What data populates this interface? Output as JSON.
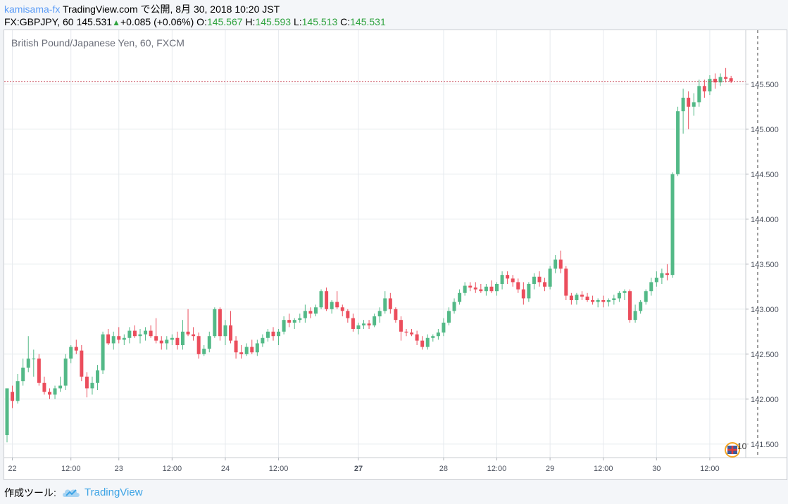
{
  "header": {
    "author": "kamisama-fx",
    "published": "TradingView.com で公開, 8月 30, 2018 10:20 JST",
    "symbol": "FX:GBPJPY, 60",
    "last": "145.531",
    "change": "+0.085 (+0.06%)",
    "o_label": "O:",
    "o_value": "145.567",
    "h_label": "H:",
    "h_value": "145.593",
    "l_label": "L:",
    "l_value": "145.513",
    "c_label": "C:",
    "c_value": "145.531"
  },
  "footer": {
    "made_with": "作成ツール:",
    "brand": "TradingView"
  },
  "colors": {
    "up": "#53b987",
    "down": "#eb4d5c",
    "grid": "#e6eaee",
    "axis_text": "#4c525e",
    "last_price_line": "#c2374a"
  },
  "chart_data": {
    "type": "candlestick",
    "title": "British Pound/Japanese Yen, 60, FXCM",
    "last_price": 145.531,
    "ylim": [
      141.35,
      146.1
    ],
    "y_ticks": [
      "141.500",
      "142.000",
      "142.500",
      "143.000",
      "143.500",
      "144.000",
      "144.500",
      "145.000",
      "145.500"
    ],
    "x_ticks": [
      {
        "label": "22",
        "bar": 1,
        "bold": false
      },
      {
        "label": "12:00",
        "bar": 12,
        "bold": false
      },
      {
        "label": "23",
        "bar": 21,
        "bold": false
      },
      {
        "label": "12:00",
        "bar": 31,
        "bold": false
      },
      {
        "label": "24",
        "bar": 41,
        "bold": false
      },
      {
        "label": "12:00",
        "bar": 51,
        "bold": false
      },
      {
        "label": "27",
        "bar": 66,
        "bold": true
      },
      {
        "label": "28",
        "bar": 82,
        "bold": false
      },
      {
        "label": "12:00",
        "bar": 92,
        "bold": false
      },
      {
        "label": "29",
        "bar": 102,
        "bold": false
      },
      {
        "label": "12:00",
        "bar": 112,
        "bold": false
      },
      {
        "label": "30",
        "bar": 122,
        "bold": false
      },
      {
        "label": "12:00",
        "bar": 132,
        "bold": false
      }
    ],
    "event_marker": {
      "label": "10"
    },
    "candles": [
      [
        141.6,
        142.12,
        141.52,
        142.12
      ],
      [
        142.08,
        142.15,
        141.9,
        141.98
      ],
      [
        141.98,
        142.28,
        141.95,
        142.2
      ],
      [
        142.2,
        142.45,
        142.15,
        142.35
      ],
      [
        142.35,
        142.7,
        142.3,
        142.45
      ],
      [
        142.45,
        142.55,
        142.25,
        142.45
      ],
      [
        142.45,
        142.5,
        142.15,
        142.18
      ],
      [
        142.18,
        142.25,
        142.05,
        142.08
      ],
      [
        142.08,
        142.12,
        142.0,
        142.05
      ],
      [
        142.05,
        142.15,
        142.0,
        142.12
      ],
      [
        142.12,
        142.25,
        142.08,
        142.15
      ],
      [
        142.15,
        142.5,
        142.1,
        142.45
      ],
      [
        142.45,
        142.6,
        142.4,
        142.58
      ],
      [
        142.58,
        142.66,
        142.5,
        142.54
      ],
      [
        142.54,
        142.6,
        142.2,
        142.25
      ],
      [
        142.25,
        142.3,
        142.02,
        142.12
      ],
      [
        142.12,
        142.25,
        142.05,
        142.18
      ],
      [
        142.18,
        142.38,
        142.1,
        142.32
      ],
      [
        142.32,
        142.75,
        142.28,
        142.72
      ],
      [
        142.72,
        142.78,
        142.6,
        142.62
      ],
      [
        142.62,
        142.75,
        142.55,
        142.7
      ],
      [
        142.7,
        142.8,
        142.62,
        142.66
      ],
      [
        142.66,
        142.72,
        142.6,
        142.68
      ],
      [
        142.68,
        142.8,
        142.62,
        142.76
      ],
      [
        142.76,
        142.82,
        142.68,
        142.7
      ],
      [
        142.7,
        142.78,
        142.62,
        142.72
      ],
      [
        142.72,
        142.8,
        142.65,
        142.76
      ],
      [
        142.76,
        142.82,
        142.68,
        142.7
      ],
      [
        142.7,
        142.9,
        142.62,
        142.65
      ],
      [
        142.65,
        142.7,
        142.55,
        142.62
      ],
      [
        142.62,
        142.7,
        142.55,
        142.66
      ],
      [
        142.66,
        142.72,
        142.6,
        142.68
      ],
      [
        142.68,
        142.75,
        142.55,
        142.6
      ],
      [
        142.6,
        142.88,
        142.55,
        142.75
      ],
      [
        142.75,
        143.0,
        142.7,
        142.72
      ],
      [
        142.72,
        142.8,
        142.65,
        142.7
      ],
      [
        142.7,
        142.74,
        142.45,
        142.5
      ],
      [
        142.5,
        142.6,
        142.48,
        142.56
      ],
      [
        142.56,
        142.75,
        142.52,
        142.7
      ],
      [
        142.7,
        143.02,
        142.68,
        143.0
      ],
      [
        143.0,
        143.02,
        142.65,
        142.7
      ],
      [
        142.7,
        142.88,
        142.6,
        142.82
      ],
      [
        142.82,
        142.98,
        142.62,
        142.65
      ],
      [
        142.65,
        142.7,
        142.45,
        142.52
      ],
      [
        142.52,
        142.6,
        142.45,
        142.5
      ],
      [
        142.5,
        142.62,
        142.48,
        142.58
      ],
      [
        142.58,
        142.66,
        142.5,
        142.52
      ],
      [
        142.52,
        142.66,
        142.48,
        142.62
      ],
      [
        142.62,
        142.72,
        142.58,
        142.68
      ],
      [
        142.68,
        142.78,
        142.64,
        142.75
      ],
      [
        142.75,
        142.8,
        142.65,
        142.7
      ],
      [
        142.7,
        142.78,
        142.6,
        142.75
      ],
      [
        142.75,
        142.92,
        142.72,
        142.88
      ],
      [
        142.88,
        142.95,
        142.8,
        142.85
      ],
      [
        142.85,
        142.9,
        142.78,
        142.88
      ],
      [
        142.88,
        142.95,
        142.85,
        142.9
      ],
      [
        142.9,
        143.05,
        142.85,
        142.98
      ],
      [
        142.98,
        143.02,
        142.9,
        142.95
      ],
      [
        142.95,
        143.05,
        142.92,
        143.02
      ],
      [
        143.02,
        143.22,
        143.0,
        143.2
      ],
      [
        143.2,
        143.24,
        142.98,
        143.0
      ],
      [
        143.0,
        143.1,
        142.95,
        143.08
      ],
      [
        143.08,
        143.2,
        143.0,
        143.02
      ],
      [
        143.02,
        143.05,
        142.92,
        142.98
      ],
      [
        142.98,
        143.0,
        142.85,
        142.9
      ],
      [
        142.9,
        142.95,
        142.75,
        142.78
      ],
      [
        142.78,
        142.85,
        142.72,
        142.82
      ],
      [
        142.82,
        142.88,
        142.78,
        142.84
      ],
      [
        142.84,
        142.88,
        142.78,
        142.82
      ],
      [
        142.82,
        142.95,
        142.8,
        142.92
      ],
      [
        142.92,
        143.02,
        142.85,
        142.98
      ],
      [
        142.98,
        143.2,
        142.95,
        143.12
      ],
      [
        143.12,
        143.18,
        142.95,
        143.0
      ],
      [
        143.0,
        143.02,
        142.85,
        142.88
      ],
      [
        142.88,
        142.92,
        142.65,
        142.75
      ],
      [
        142.75,
        142.78,
        142.7,
        142.74
      ],
      [
        142.74,
        142.78,
        142.7,
        142.72
      ],
      [
        142.72,
        142.76,
        142.6,
        142.65
      ],
      [
        142.65,
        142.7,
        142.55,
        142.58
      ],
      [
        142.58,
        142.72,
        142.55,
        142.68
      ],
      [
        142.68,
        142.72,
        142.64,
        142.7
      ],
      [
        142.7,
        142.78,
        142.66,
        142.74
      ],
      [
        142.74,
        142.9,
        142.7,
        142.85
      ],
      [
        142.85,
        143.02,
        142.82,
        142.98
      ],
      [
        142.98,
        143.12,
        142.95,
        143.08
      ],
      [
        143.08,
        143.22,
        143.05,
        143.18
      ],
      [
        143.18,
        143.3,
        143.15,
        143.26
      ],
      [
        143.26,
        143.3,
        143.2,
        143.24
      ],
      [
        143.24,
        143.3,
        143.18,
        143.22
      ],
      [
        143.22,
        143.28,
        143.18,
        143.2
      ],
      [
        143.2,
        143.28,
        143.15,
        143.25
      ],
      [
        143.25,
        143.32,
        143.18,
        143.2
      ],
      [
        143.2,
        143.3,
        143.15,
        143.28
      ],
      [
        143.28,
        143.42,
        143.22,
        143.38
      ],
      [
        143.38,
        143.42,
        143.28,
        143.34
      ],
      [
        143.34,
        143.38,
        143.25,
        143.3
      ],
      [
        143.3,
        143.34,
        143.18,
        143.22
      ],
      [
        143.22,
        143.3,
        143.05,
        143.12
      ],
      [
        143.12,
        143.3,
        143.08,
        143.28
      ],
      [
        143.28,
        143.4,
        143.22,
        143.36
      ],
      [
        143.36,
        143.42,
        143.25,
        143.3
      ],
      [
        143.3,
        143.35,
        143.2,
        143.25
      ],
      [
        143.25,
        143.48,
        143.22,
        143.45
      ],
      [
        143.45,
        143.6,
        143.4,
        143.55
      ],
      [
        143.55,
        143.65,
        143.4,
        143.45
      ],
      [
        143.45,
        143.48,
        143.1,
        143.15
      ],
      [
        143.15,
        143.18,
        143.05,
        143.1
      ],
      [
        143.1,
        143.18,
        143.05,
        143.16
      ],
      [
        143.16,
        143.2,
        143.1,
        143.14
      ],
      [
        143.14,
        143.18,
        143.08,
        143.1
      ],
      [
        143.1,
        143.15,
        143.05,
        143.08
      ],
      [
        143.08,
        143.12,
        143.02,
        143.1
      ],
      [
        143.1,
        143.15,
        143.02,
        143.08
      ],
      [
        143.08,
        143.12,
        143.03,
        143.1
      ],
      [
        143.1,
        143.16,
        143.05,
        143.12
      ],
      [
        143.12,
        143.2,
        143.08,
        143.18
      ],
      [
        143.18,
        143.22,
        143.1,
        143.2
      ],
      [
        143.2,
        143.22,
        142.85,
        142.88
      ],
      [
        142.88,
        143.05,
        142.85,
        142.98
      ],
      [
        142.98,
        143.1,
        142.95,
        143.08
      ],
      [
        143.08,
        143.22,
        143.05,
        143.2
      ],
      [
        143.2,
        143.35,
        143.15,
        143.3
      ],
      [
        143.3,
        143.42,
        143.25,
        143.35
      ],
      [
        143.35,
        143.45,
        143.28,
        143.4
      ],
      [
        143.4,
        143.5,
        143.32,
        143.38
      ],
      [
        143.38,
        144.52,
        143.35,
        144.5
      ],
      [
        144.5,
        145.25,
        144.48,
        145.2
      ],
      [
        145.2,
        145.45,
        144.95,
        145.35
      ],
      [
        145.35,
        145.42,
        145.0,
        145.25
      ],
      [
        145.25,
        145.4,
        145.15,
        145.3
      ],
      [
        145.3,
        145.55,
        145.25,
        145.48
      ],
      [
        145.48,
        145.55,
        145.35,
        145.42
      ],
      [
        145.42,
        145.6,
        145.38,
        145.56
      ],
      [
        145.56,
        145.62,
        145.45,
        145.52
      ],
      [
        145.52,
        145.62,
        145.48,
        145.58
      ],
      [
        145.58,
        145.68,
        145.52,
        145.56
      ],
      [
        145.567,
        145.593,
        145.513,
        145.531
      ]
    ]
  }
}
